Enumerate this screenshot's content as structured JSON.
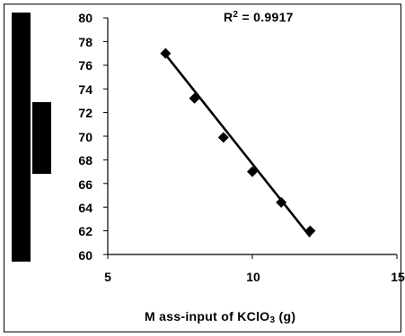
{
  "chart_data": {
    "type": "scatter",
    "x": [
      7,
      8,
      9,
      10,
      11,
      12
    ],
    "y": [
      77.0,
      73.2,
      69.9,
      67.0,
      64.4,
      62.0
    ],
    "xlim": [
      5,
      15
    ],
    "ylim": [
      60,
      80
    ],
    "x_ticks": [
      "5",
      "10",
      "15"
    ],
    "y_ticks": [
      "80",
      "78",
      "76",
      "74",
      "72",
      "70",
      "68",
      "66",
      "64",
      "62",
      "60"
    ],
    "trendline": {
      "type": "linear",
      "x_range": [
        7,
        12
      ],
      "y_start": 76.9,
      "y_end": 61.5
    },
    "annotation": {
      "prefix": "R",
      "sup": "2",
      "suffix": " = 0.9917"
    },
    "xlabel": {
      "main": "M ass-input of KClO",
      "sub": "3",
      "tail": " (g)"
    },
    "ylabel": "",
    "grid": false,
    "marker": "diamond",
    "marker_color": "#000000"
  }
}
